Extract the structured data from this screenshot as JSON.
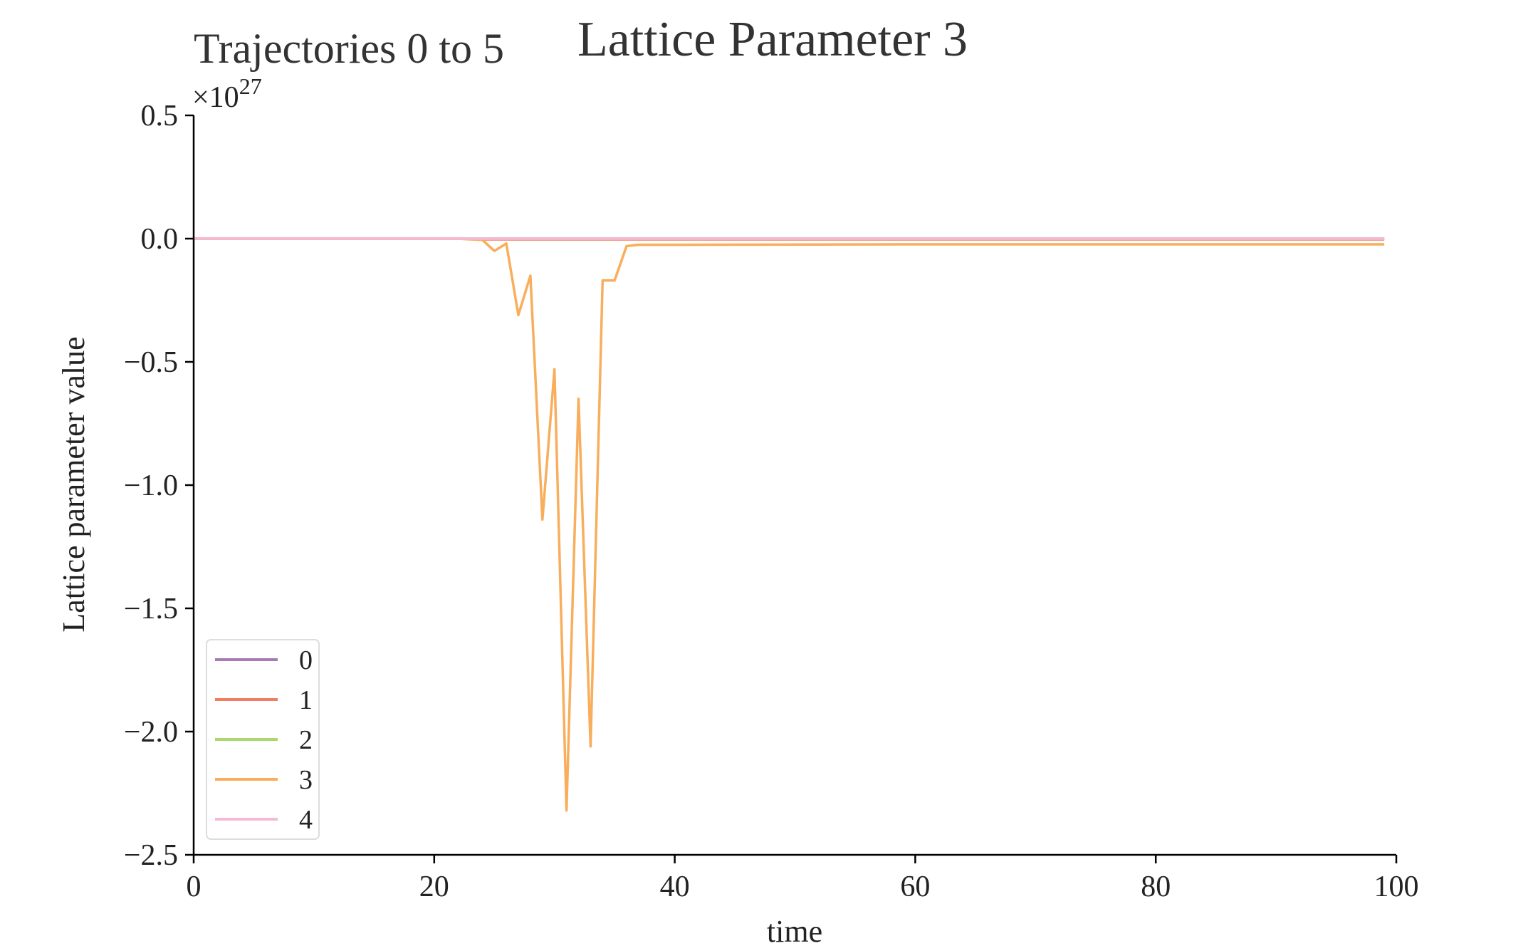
{
  "chart_data": {
    "type": "line",
    "title": "Lattice Parameter 3",
    "subtitle": "Trajectories 0 to 5",
    "xlabel": "time",
    "ylabel": "Lattice parameter value",
    "y_multiplier_label": "×10",
    "y_multiplier_exponent": "27",
    "xlim": [
      0,
      100
    ],
    "ylim": [
      -2.5,
      0.5
    ],
    "xticks": [
      "0",
      "20",
      "40",
      "60",
      "80",
      "100"
    ],
    "xtick_values": [
      0,
      20,
      40,
      60,
      80,
      100
    ],
    "yticks": [
      "0.5",
      "0.0",
      "−0.5",
      "−1.0",
      "−1.5",
      "−2.0",
      "−2.5"
    ],
    "ytick_values": [
      0.5,
      0.0,
      -0.5,
      -1.0,
      -1.5,
      -2.0,
      -2.5
    ],
    "grid": false,
    "legend_position": "lower-left",
    "series": [
      {
        "name": "0",
        "color": "#a77bb5",
        "points": [
          [
            0,
            0.0
          ],
          [
            99,
            0.0
          ]
        ]
      },
      {
        "name": "1",
        "color": "#f07c62",
        "points": [
          [
            0,
            0.0
          ],
          [
            22,
            0.0
          ],
          [
            23,
            -0.002
          ],
          [
            24,
            -0.003
          ],
          [
            25,
            -0.003
          ],
          [
            99,
            -0.003
          ]
        ]
      },
      {
        "name": "2",
        "color": "#a8d86e",
        "points": [
          [
            0,
            0.0
          ],
          [
            99,
            0.0
          ]
        ]
      },
      {
        "name": "3",
        "color": "#f8ae5c",
        "points": [
          [
            0,
            0.0
          ],
          [
            22,
            0.0
          ],
          [
            23,
            -0.003
          ],
          [
            24,
            -0.005
          ],
          [
            25,
            -0.05
          ],
          [
            26,
            -0.02
          ],
          [
            27,
            -0.31
          ],
          [
            28,
            -0.15
          ],
          [
            29,
            -1.14
          ],
          [
            30,
            -0.53
          ],
          [
            31,
            -2.32
          ],
          [
            32,
            -0.65
          ],
          [
            33,
            -2.06
          ],
          [
            34,
            -0.17
          ],
          [
            35,
            -0.17
          ],
          [
            36,
            -0.03
          ],
          [
            37,
            -0.025
          ],
          [
            40,
            -0.025
          ],
          [
            60,
            -0.023
          ],
          [
            99,
            -0.023
          ]
        ]
      },
      {
        "name": "4",
        "color": "#f6b9d8",
        "points": [
          [
            0,
            0.0
          ],
          [
            99,
            0.0
          ]
        ]
      }
    ]
  }
}
